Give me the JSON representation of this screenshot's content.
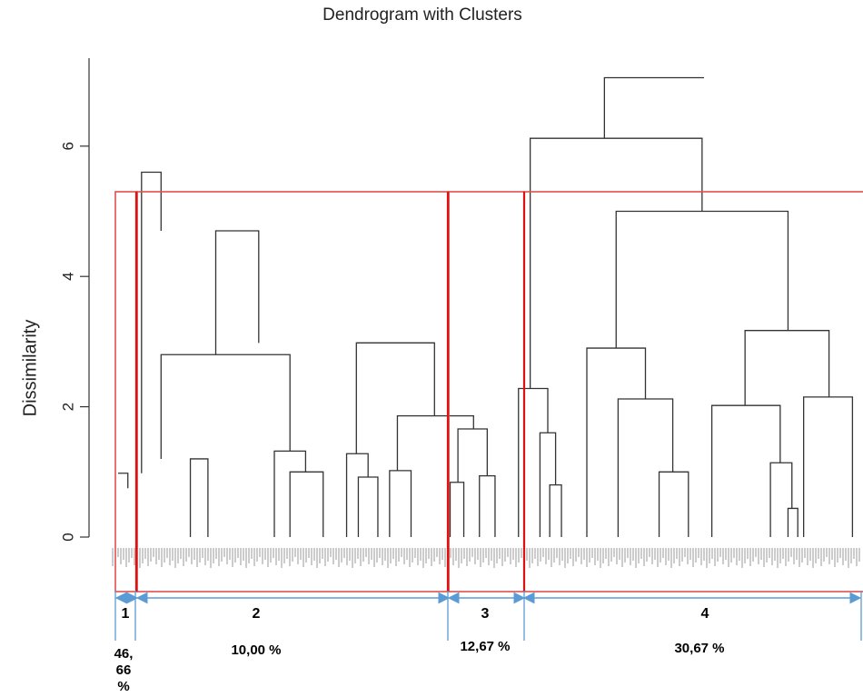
{
  "chart_data": {
    "type": "dendrogram",
    "title": "Dendrogram with Clusters",
    "ylabel": "Dissimilarity",
    "xlabel": "",
    "yticks": [
      "0",
      "2",
      "4",
      "6"
    ],
    "ylim": [
      0,
      7.1
    ],
    "cut_height": 5.3,
    "merges": [
      {
        "left": [
          0.0,
          0.98
        ],
        "right": [
          0.05,
          0.75
        ],
        "height": 0.98
      },
      {
        "left": [
          0.12,
          0.98
        ],
        "right": [
          0.22,
          4.7
        ],
        "height": 5.6
      },
      {
        "left": [
          0.5,
          2.8
        ],
        "right": [
          0.72,
          2.98
        ],
        "height": 4.7
      },
      {
        "left": [
          0.22,
          1.2
        ],
        "right": [
          0.88,
          1.32
        ],
        "height": 2.8
      },
      {
        "left": [
          0.37,
          0.0
        ],
        "right": [
          0.46,
          0.0
        ],
        "height": 1.2
      },
      {
        "left": [
          0.8,
          0.0
        ],
        "right": [
          0.96,
          1.0
        ],
        "height": 1.32
      },
      {
        "left": [
          0.88,
          0.0
        ],
        "right": [
          1.05,
          0.0
        ],
        "height": 1.0
      },
      {
        "left": [
          1.22,
          1.28
        ],
        "right": [
          1.62,
          1.86
        ],
        "height": 2.98
      },
      {
        "left": [
          1.17,
          0.0
        ],
        "right": [
          1.28,
          0.92
        ],
        "height": 1.28
      },
      {
        "left": [
          1.23,
          0.0
        ],
        "right": [
          1.33,
          0.0
        ],
        "height": 0.92
      },
      {
        "left": [
          1.43,
          1.02
        ],
        "right": [
          1.82,
          1.66
        ],
        "height": 1.86
      },
      {
        "left": [
          1.39,
          0.0
        ],
        "right": [
          1.5,
          0.0
        ],
        "height": 1.02
      },
      {
        "left": [
          1.74,
          0.84
        ],
        "right": [
          1.89,
          0.94
        ],
        "height": 1.66
      },
      {
        "left": [
          1.7,
          0.0
        ],
        "right": [
          1.77,
          0.0
        ],
        "height": 0.84
      },
      {
        "left": [
          1.85,
          0.0
        ],
        "right": [
          1.93,
          0.0
        ],
        "height": 0.94
      },
      {
        "left": [
          2.49,
          6.12
        ],
        "right": [
          3.0,
          7.05
        ],
        "height": 7.05
      },
      {
        "left": [
          2.11,
          2.28
        ],
        "right": [
          2.99,
          5.0
        ],
        "height": 6.12
      },
      {
        "left": [
          2.05,
          0.0
        ],
        "right": [
          2.2,
          1.6
        ],
        "height": 2.28
      },
      {
        "left": [
          2.16,
          0.0
        ],
        "right": [
          2.24,
          0.8
        ],
        "height": 1.6
      },
      {
        "left": [
          2.21,
          0.0
        ],
        "right": [
          2.27,
          0.0
        ],
        "height": 0.8
      },
      {
        "left": [
          2.55,
          2.9
        ],
        "right": [
          3.43,
          3.17
        ],
        "height": 5.0
      },
      {
        "left": [
          2.4,
          0.0
        ],
        "right": [
          2.7,
          2.12
        ],
        "height": 2.9
      },
      {
        "left": [
          2.56,
          0.0
        ],
        "right": [
          2.84,
          1.0
        ],
        "height": 2.12
      },
      {
        "left": [
          2.77,
          0.0
        ],
        "right": [
          2.92,
          0.0
        ],
        "height": 1.0
      },
      {
        "left": [
          3.21,
          2.02
        ],
        "right": [
          3.64,
          2.15
        ],
        "height": 3.17
      },
      {
        "left": [
          3.04,
          0.0
        ],
        "right": [
          3.39,
          1.14
        ],
        "height": 2.02
      },
      {
        "left": [
          3.34,
          0.0
        ],
        "right": [
          3.45,
          0.44
        ],
        "height": 1.14
      },
      {
        "left": [
          3.43,
          0.0
        ],
        "right": [
          3.48,
          0.0
        ],
        "height": 0.44
      },
      {
        "left": [
          3.51,
          0.0
        ],
        "right": [
          3.76,
          0.0
        ],
        "height": 2.15
      }
    ],
    "clusters": [
      {
        "label": "1",
        "percent": "46, 66 %"
      },
      {
        "label": "2",
        "percent": "10,00 %"
      },
      {
        "label": "3",
        "percent": "12,67 %"
      },
      {
        "label": "4",
        "percent": "30,67 %"
      }
    ]
  },
  "colors": {
    "tree": "#333333",
    "cluster_box": "#e05050",
    "cluster_divider": "#e01010",
    "bracket_arrow": "#5b9bd5",
    "leaf_labels": "#555555"
  }
}
